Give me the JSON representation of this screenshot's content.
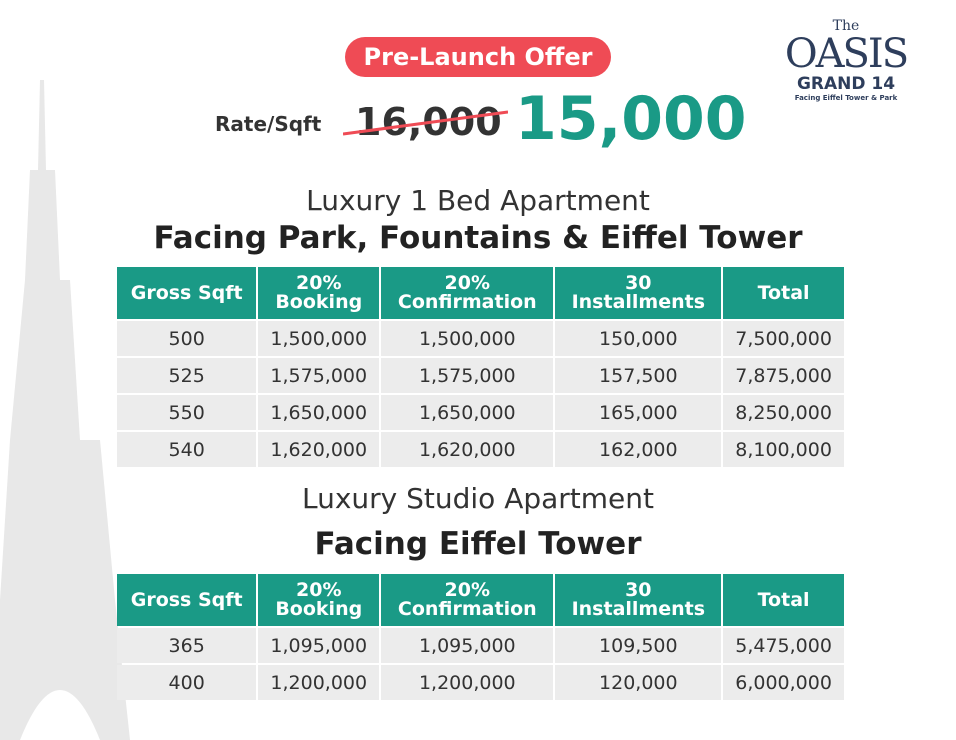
{
  "logo": {
    "the": "The",
    "name": "OASIS",
    "sub": "GRAND 14",
    "tagline": "Facing Eiffel Tower & Park"
  },
  "offer": {
    "badge": "Pre-Launch Offer",
    "rate_label": "Rate/Sqft",
    "old_rate": "16,000",
    "new_rate": "15,000"
  },
  "sections": [
    {
      "subtitle": "Luxury 1 Bed Apartment",
      "title": "Facing Park, Fountains & Eiffel Tower",
      "table": {
        "headers": [
          [
            "Gross Sqft"
          ],
          [
            "20%",
            "Booking"
          ],
          [
            "20%",
            "Confirmation"
          ],
          [
            "30",
            "Installments"
          ],
          [
            "Total"
          ]
        ],
        "rows": [
          [
            "500",
            "1,500,000",
            "1,500,000",
            "150,000",
            "7,500,000"
          ],
          [
            "525",
            "1,575,000",
            "1,575,000",
            "157,500",
            "7,875,000"
          ],
          [
            "550",
            "1,650,000",
            "1,650,000",
            "165,000",
            "8,250,000"
          ],
          [
            "540",
            "1,620,000",
            "1,620,000",
            "162,000",
            "8,100,000"
          ]
        ]
      }
    },
    {
      "subtitle": "Luxury Studio Apartment",
      "title": "Facing Eiffel Tower",
      "table": {
        "headers": [
          [
            "Gross Sqft"
          ],
          [
            "20%",
            "Booking"
          ],
          [
            "20%",
            "Confirmation"
          ],
          [
            "30",
            "Installments"
          ],
          [
            "Total"
          ]
        ],
        "rows": [
          [
            "365",
            "1,095,000",
            "1,095,000",
            "109,500",
            "5,475,000"
          ],
          [
            "400",
            "1,200,000",
            "1,200,000",
            "120,000",
            "6,000,000"
          ]
        ]
      }
    }
  ]
}
